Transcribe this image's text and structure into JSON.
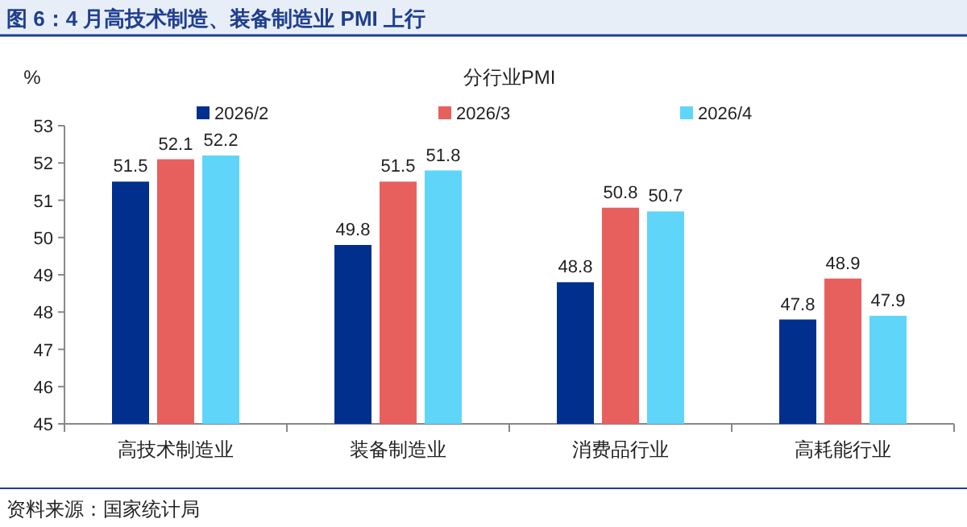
{
  "chart_data": {
    "type": "bar",
    "title": "图 6：4 月高技术制造、装备制造业 PMI 上行",
    "subtitle": "分行业PMI",
    "ylabel": "%",
    "categories": [
      "高技术制造业",
      "装备制造业",
      "消费品行业",
      "高耗能行业"
    ],
    "series": [
      {
        "name": "2026/2",
        "color": "#002f8e",
        "values": [
          51.5,
          49.8,
          48.8,
          47.8
        ]
      },
      {
        "name": "2026/3",
        "color": "#e8605e",
        "values": [
          52.1,
          51.5,
          50.8,
          48.9
        ]
      },
      {
        "name": "2026/4",
        "color": "#5fd5fa",
        "values": [
          52.2,
          51.8,
          50.7,
          47.9
        ]
      }
    ],
    "ylim": [
      45,
      53
    ],
    "yticks": [
      45,
      46,
      47,
      48,
      49,
      50,
      51,
      52,
      53
    ],
    "data_labels": true,
    "legend": "top",
    "annotations": [
      "资料来源：国家统计局"
    ]
  }
}
